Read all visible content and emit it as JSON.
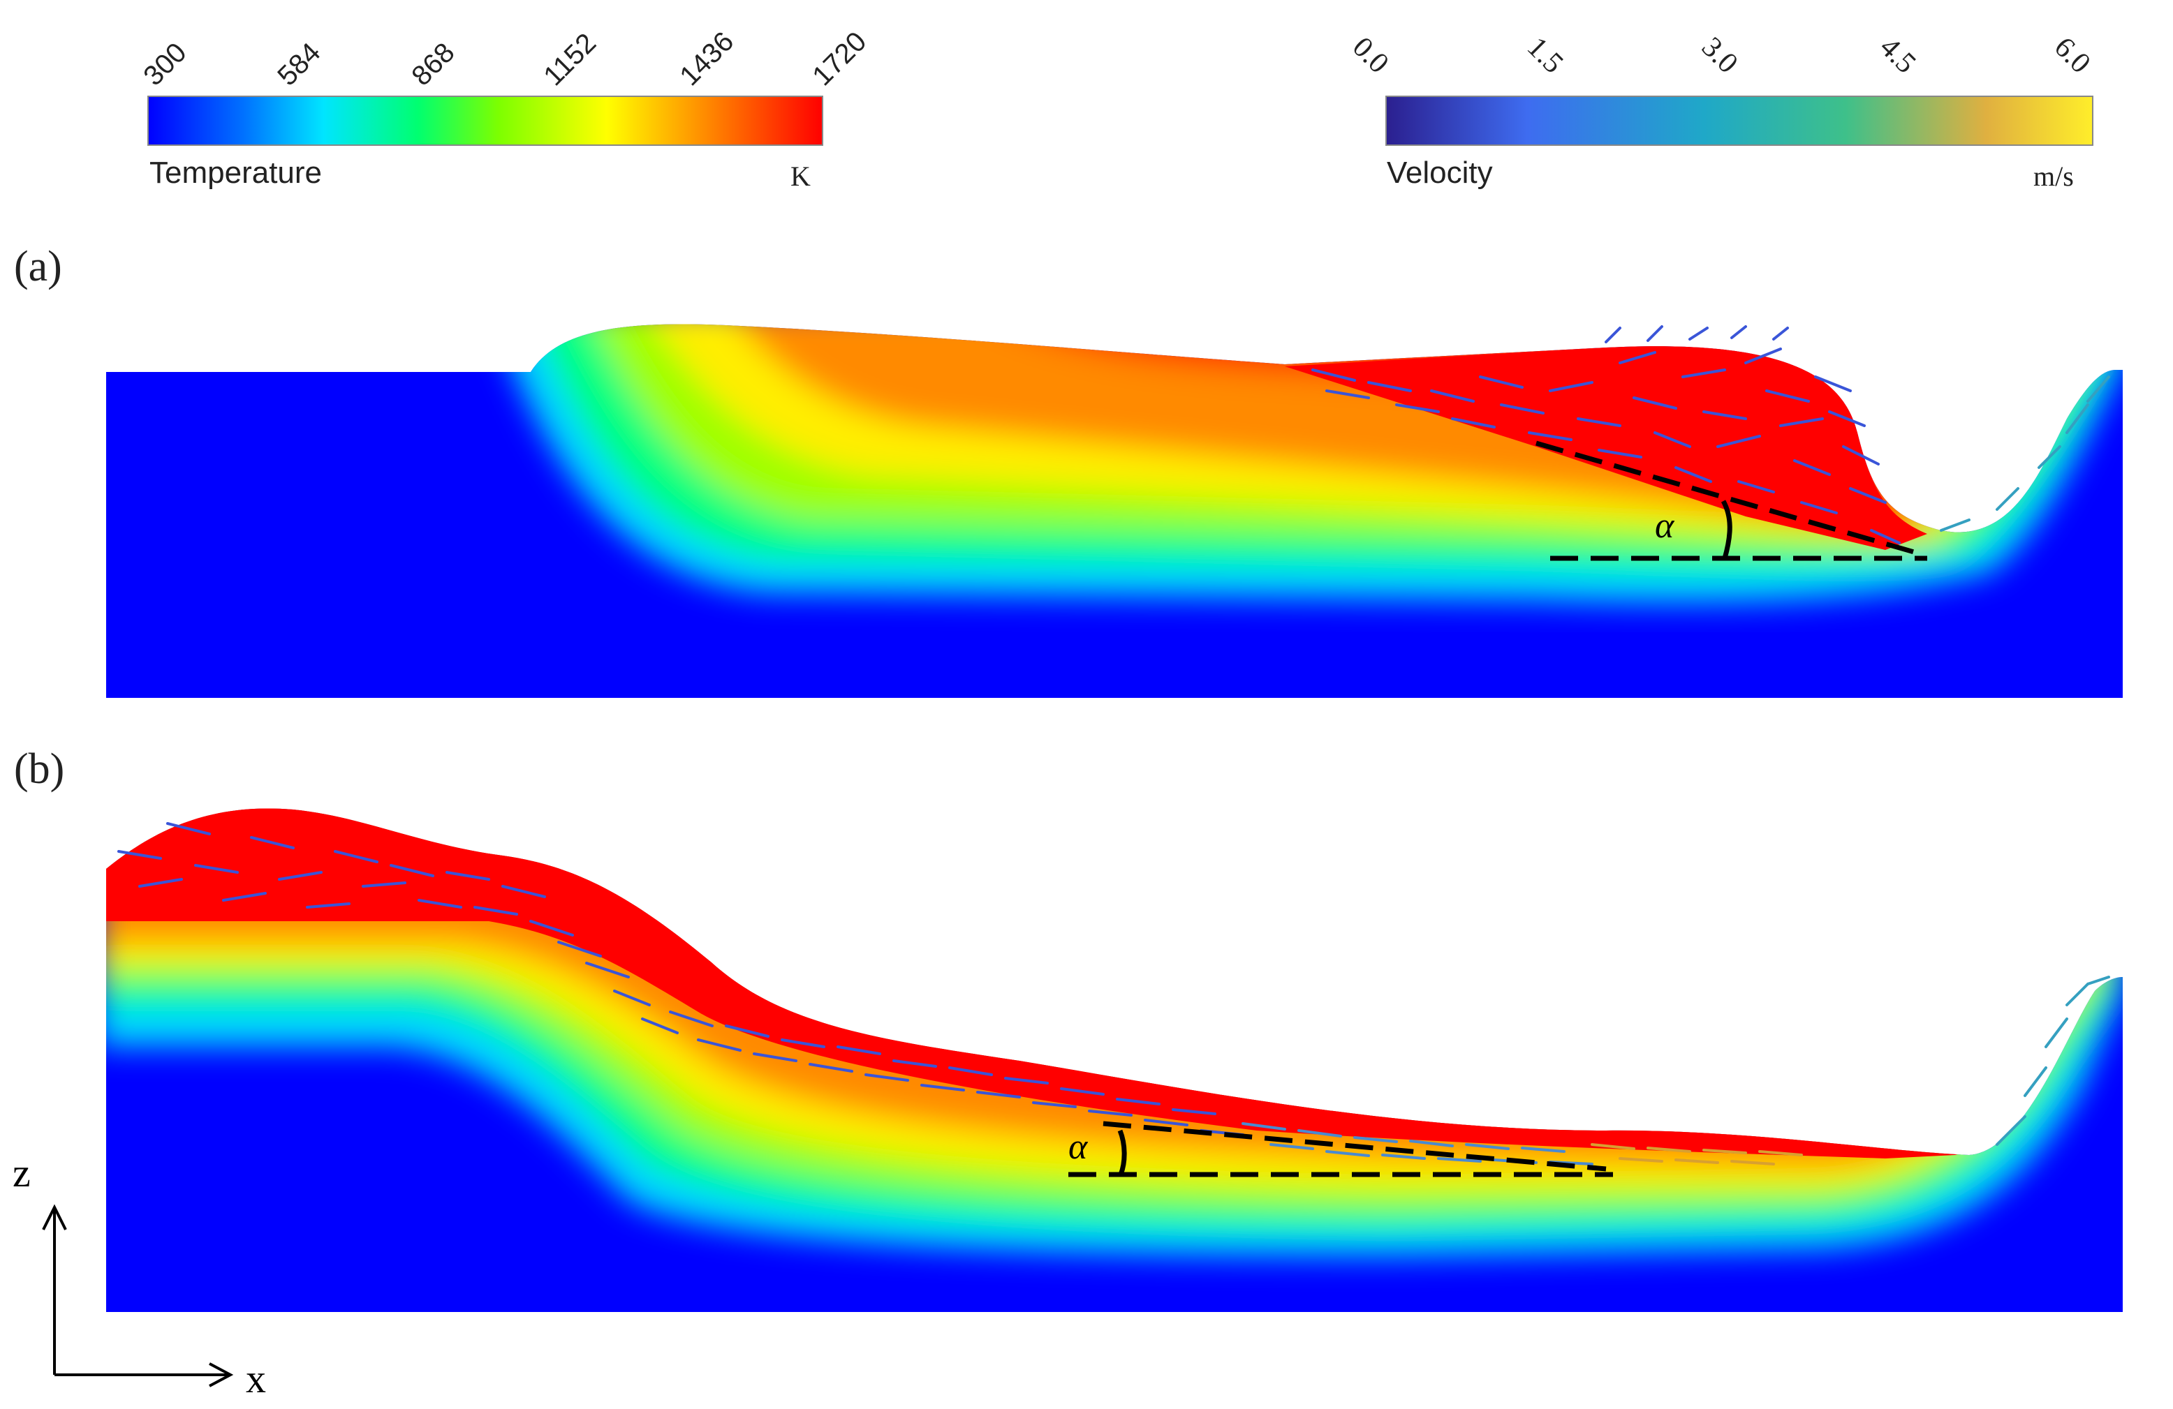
{
  "legends": {
    "temperature": {
      "label": "Temperature",
      "unit": "K",
      "ticks": [
        "300",
        "584",
        "868",
        "1152",
        "1436",
        "1720"
      ],
      "colors": [
        "#0000ff",
        "#0070ff",
        "#00e5ff",
        "#00ff70",
        "#7dff00",
        "#ffff00",
        "#ff8000",
        "#ff0000"
      ]
    },
    "velocity": {
      "label": "Velocity",
      "unit": "m/s",
      "ticks": [
        "0.0",
        "1.5",
        "3.0",
        "4.5",
        "6.0"
      ],
      "colors": [
        "#2b1f8f",
        "#3e6cf0",
        "#1fa8c8",
        "#3ec08a",
        "#e0b040",
        "#ffee2a"
      ]
    }
  },
  "panels": [
    {
      "id": "a",
      "label": "(a)",
      "angle_symbol": "α"
    },
    {
      "id": "b",
      "label": "(b)",
      "angle_symbol": "α"
    }
  ],
  "axes": {
    "x_label": "x",
    "z_label": "z"
  },
  "colors": {
    "hot": "#ff0000",
    "cold": "#0000ff",
    "vector": "#3a55d8",
    "guide": "#000000"
  }
}
